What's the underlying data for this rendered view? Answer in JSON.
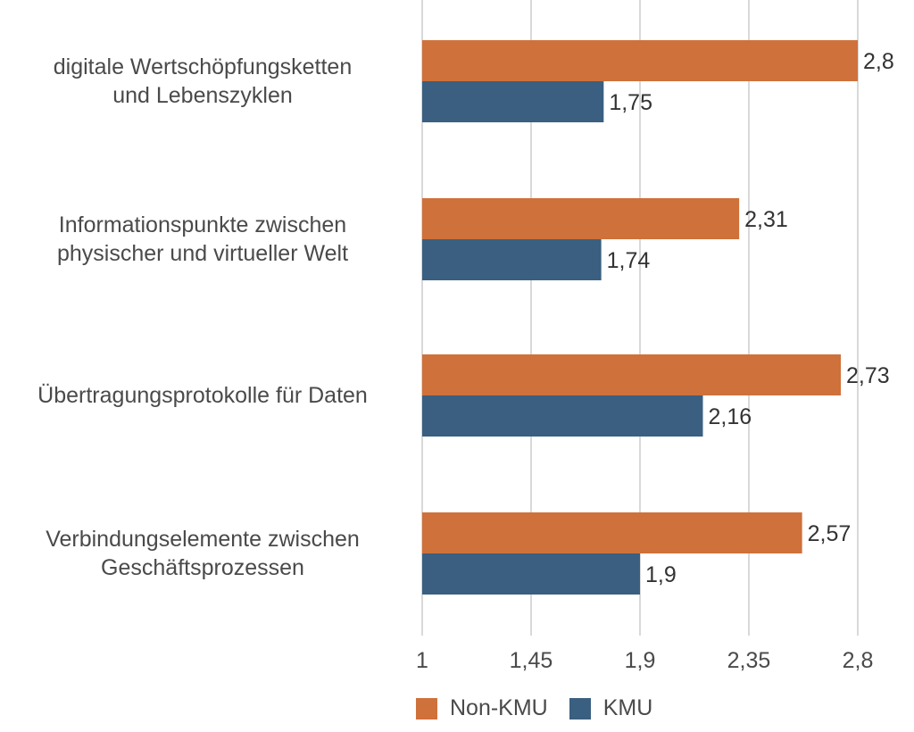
{
  "chart_data": {
    "type": "bar",
    "orientation": "horizontal",
    "categories": [
      [
        "digitale Wertschöpfungsketten",
        "und Lebenszyklen"
      ],
      [
        "Informationspunkte zwischen",
        "physischer und virtueller Welt"
      ],
      [
        "Übertragungsprotokolle für Daten"
      ],
      [
        "Verbindungselemente zwischen",
        "Geschäftsprozessen"
      ]
    ],
    "series": [
      {
        "name": "Non-KMU",
        "color": "#cf713a",
        "values": [
          2.8,
          2.31,
          2.73,
          2.57
        ],
        "labels": [
          "2,8",
          "2,31",
          "2,73",
          "2,57"
        ]
      },
      {
        "name": "KMU",
        "color": "#3a5f80",
        "values": [
          1.75,
          1.74,
          2.16,
          1.9
        ],
        "labels": [
          "1,75",
          "1,74",
          "2,16",
          "1,9"
        ]
      }
    ],
    "xlim": [
      1,
      2.8
    ],
    "xticks": [
      1,
      1.45,
      1.9,
      2.35,
      2.8
    ],
    "xtick_labels": [
      "1",
      "1,45",
      "1,9",
      "2,35",
      "2,8"
    ],
    "grid": true,
    "legend_position": "bottom"
  }
}
